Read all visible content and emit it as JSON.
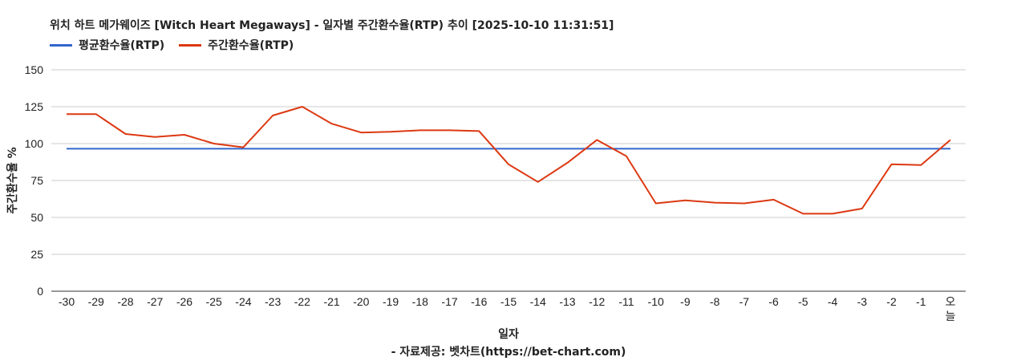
{
  "chart_data": {
    "type": "line",
    "title": "위치 하트 메가웨이즈 [Witch Heart Megaways] - 일자별 주간환수율(RTP) 추이 [2025-10-10 11:31:51]",
    "xlabel": "일자",
    "ylabel": "주간환수율 %",
    "ylim": [
      0,
      150
    ],
    "yticks": [
      "0",
      "25",
      "50",
      "75",
      "100",
      "125",
      "150"
    ],
    "categories": [
      "-30",
      "-29",
      "-28",
      "-27",
      "-26",
      "-25",
      "-24",
      "-23",
      "-22",
      "-21",
      "-20",
      "-19",
      "-18",
      "-17",
      "-16",
      "-15",
      "-14",
      "-13",
      "-12",
      "-11",
      "-10",
      "-9",
      "-8",
      "-7",
      "-6",
      "-5",
      "-4",
      "-3",
      "-2",
      "-1",
      "오늘"
    ],
    "grid": true,
    "legend_position": "top-left",
    "series": [
      {
        "name": "평균환수율(RTP)",
        "color": "#3366cc",
        "values": [
          96.5,
          96.5,
          96.5,
          96.5,
          96.5,
          96.5,
          96.5,
          96.5,
          96.5,
          96.5,
          96.5,
          96.5,
          96.5,
          96.5,
          96.5,
          96.5,
          96.5,
          96.5,
          96.5,
          96.5,
          96.5,
          96.5,
          96.5,
          96.5,
          96.5,
          96.5,
          96.5,
          96.5,
          96.5,
          96.5,
          96.5
        ]
      },
      {
        "name": "주간환수율(RTP)",
        "color": "#dc3912",
        "values": [
          120,
          120,
          106.5,
          104.5,
          106,
          100,
          97.5,
          119,
          125,
          113.5,
          107.5,
          108,
          109,
          109,
          108.5,
          86,
          74,
          87,
          102.5,
          91.5,
          59.5,
          61.5,
          60,
          59.5,
          62,
          52.5,
          52.5,
          56,
          86,
          85.5,
          102.5
        ]
      }
    ]
  },
  "source_text": "- 자료제공: 벳차트(https://bet-chart.com)"
}
